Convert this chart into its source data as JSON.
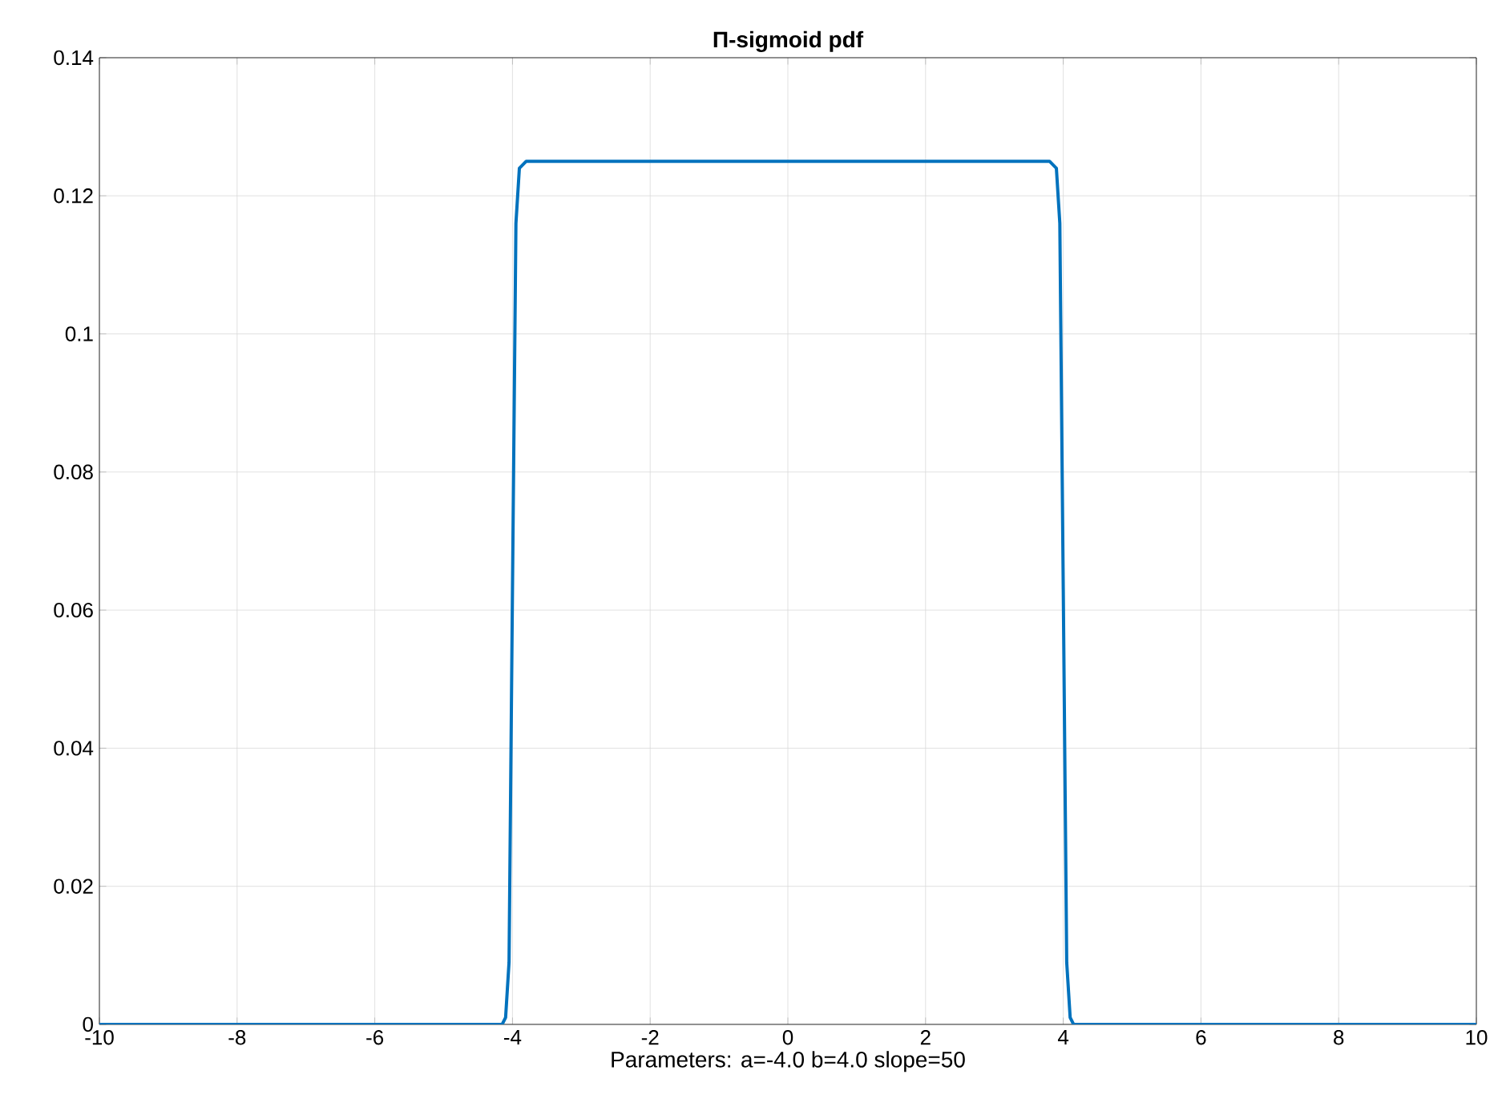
{
  "chart_data": {
    "type": "line",
    "title": "**Π-sigmoid pdf**",
    "xlabel": "Parameters: a=-4.0 b=4.0 slope=50",
    "series": [
      {
        "color": "#0072bd",
        "x": [
          -10,
          -4.2,
          -4.15,
          -4.1,
          -4.05,
          -4.0,
          -3.95,
          -3.9,
          -3.8,
          3.8,
          3.9,
          3.95,
          4.0,
          4.05,
          4.1,
          4.15,
          4.2,
          10
        ],
        "values": [
          0,
          0,
          0,
          0.001,
          0.009,
          0.063,
          0.116,
          0.124,
          0.125,
          0.125,
          0.124,
          0.116,
          0.063,
          0.009,
          0.001,
          0,
          0,
          0
        ]
      }
    ],
    "xlim": [
      -10,
      10
    ],
    "ylim": [
      0,
      0.14
    ],
    "xticks": [
      -10,
      -8,
      -6,
      -4,
      -2,
      0,
      2,
      4,
      6,
      8,
      10
    ],
    "yticks": [
      0,
      0.02,
      0.04,
      0.06,
      0.08,
      0.1,
      0.12,
      0.14
    ],
    "grid": true,
    "marker": "none",
    "line_style": "solid"
  }
}
